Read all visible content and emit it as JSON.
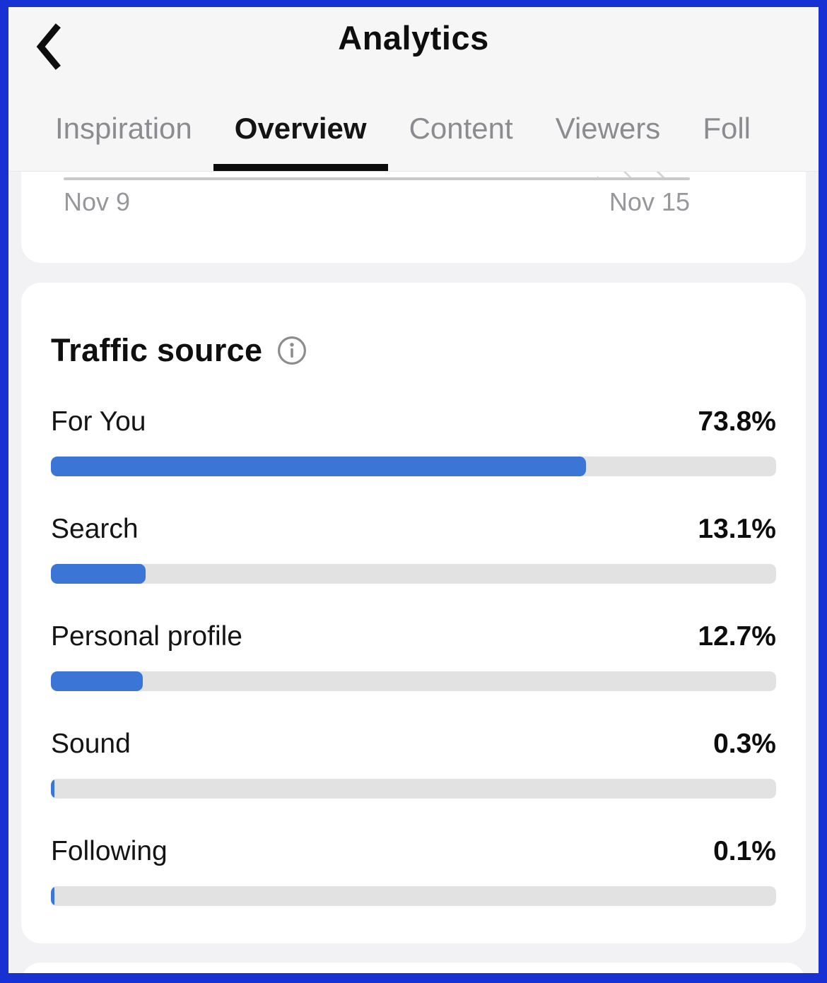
{
  "header": {
    "title": "Analytics",
    "back_icon": "chevron-left",
    "tabs": [
      {
        "label": "Inspiration",
        "active": false
      },
      {
        "label": "Overview",
        "active": true
      },
      {
        "label": "Content",
        "active": false
      },
      {
        "label": "Viewers",
        "active": false
      },
      {
        "label": "Foll",
        "active": false
      }
    ]
  },
  "chart_preview": {
    "x_axis_start_label": "Nov 9",
    "x_axis_end_label": "Nov 15"
  },
  "traffic": {
    "title": "Traffic source",
    "info_icon": "info-icon",
    "rows": [
      {
        "label": "For You",
        "value": "73.8%",
        "pct": 73.8
      },
      {
        "label": "Search",
        "value": "13.1%",
        "pct": 13.1
      },
      {
        "label": "Personal profile",
        "value": "12.7%",
        "pct": 12.7
      },
      {
        "label": "Sound",
        "value": "0.3%",
        "pct": 0.3
      },
      {
        "label": "Following",
        "value": "0.1%",
        "pct": 0.1
      }
    ]
  },
  "colors": {
    "frame_border": "#1731d3",
    "bar_fill": "#3b76d7",
    "bar_track": "#e2e2e2",
    "active_tab_underline": "#0c0c0c"
  },
  "chart_data": {
    "type": "bar",
    "orientation": "horizontal",
    "title": "Traffic source",
    "categories": [
      "For You",
      "Search",
      "Personal profile",
      "Sound",
      "Following"
    ],
    "values": [
      73.8,
      13.1,
      12.7,
      0.3,
      0.1
    ],
    "unit": "%",
    "xlim": [
      0,
      100
    ],
    "x_axis_labels_visible_chart_above": [
      "Nov 9",
      "Nov 15"
    ]
  }
}
